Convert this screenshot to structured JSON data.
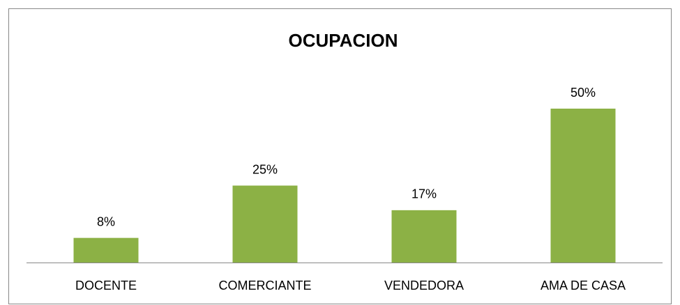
{
  "chart_data": {
    "type": "bar",
    "title": "OCUPACION",
    "categories": [
      "DOCENTE",
      "COMERCIANTE",
      "VENDEDORA",
      "AMA DE CASA"
    ],
    "values": [
      8,
      25,
      17,
      50
    ],
    "value_labels": [
      "8%",
      "25%",
      "17%",
      "50%"
    ],
    "color": "#8cb145"
  }
}
